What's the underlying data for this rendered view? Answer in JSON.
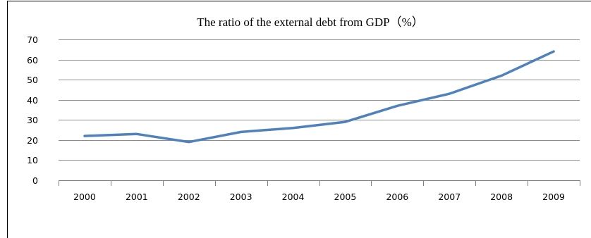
{
  "chart_data": {
    "type": "line",
    "title": "The ratio of the external debt from GDP（%）",
    "xlabel": "",
    "ylabel": "",
    "categories": [
      "2000",
      "2001",
      "2002",
      "2003",
      "2004",
      "2005",
      "2006",
      "2007",
      "2008",
      "2009"
    ],
    "series": [
      {
        "values": [
          22,
          23,
          19,
          24,
          26,
          29,
          37,
          43,
          52,
          64
        ],
        "color": "#4f81bd"
      }
    ],
    "ylim": [
      0,
      70
    ],
    "yticks": [
      "0",
      "10",
      "20",
      "30",
      "40",
      "50",
      "60",
      "70"
    ],
    "grid": true,
    "legend": "none"
  }
}
